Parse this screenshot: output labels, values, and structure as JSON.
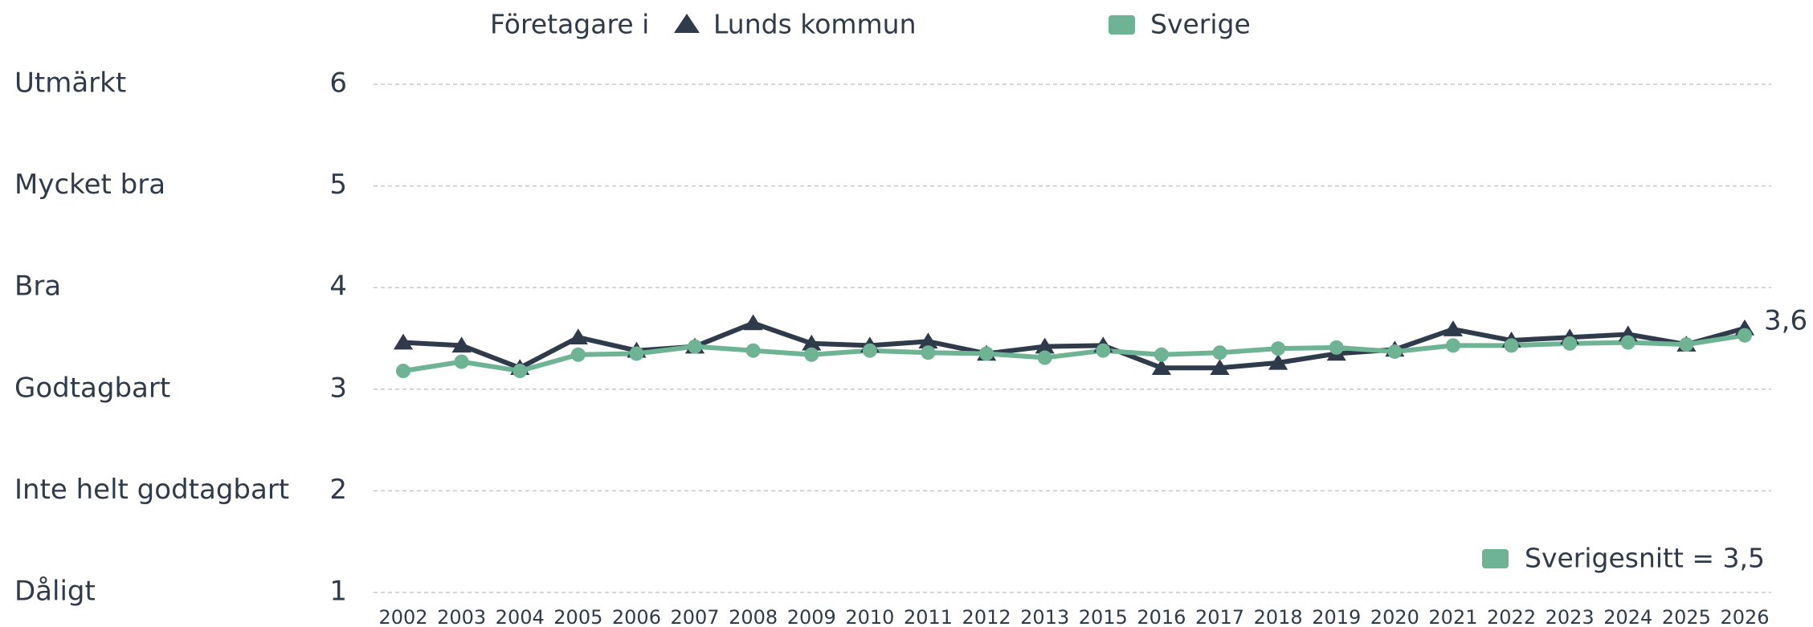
{
  "chart_data": {
    "type": "line",
    "legend_title": "Företagare i",
    "categories": [
      "2002",
      "2003",
      "2004",
      "2005",
      "2006",
      "2007",
      "2008",
      "2009",
      "2010",
      "2011",
      "2012",
      "2013",
      "2015",
      "2016",
      "2017",
      "2018",
      "2019",
      "2020",
      "2021",
      "2022",
      "2023",
      "2024",
      "2025",
      "2026"
    ],
    "series": [
      {
        "name": "Lunds kommun",
        "color": "#2f3a4a",
        "marker": "triangle",
        "values": [
          3.46,
          3.43,
          3.21,
          3.51,
          3.38,
          3.42,
          3.65,
          3.45,
          3.43,
          3.47,
          3.35,
          3.42,
          3.43,
          3.21,
          3.21,
          3.26,
          3.35,
          3.39,
          3.59,
          3.48,
          3.51,
          3.54,
          3.44,
          3.6
        ],
        "value_labels": [
          null,
          null,
          null,
          null,
          null,
          null,
          null,
          null,
          null,
          null,
          null,
          null,
          null,
          null,
          null,
          null,
          null,
          null,
          null,
          null,
          null,
          null,
          null,
          "3,6"
        ]
      },
      {
        "name": "Sverige",
        "color": "#6db394",
        "marker": "circle",
        "values": [
          3.18,
          3.27,
          3.18,
          3.34,
          3.35,
          3.42,
          3.38,
          3.34,
          3.38,
          3.36,
          3.35,
          3.31,
          3.38,
          3.34,
          3.36,
          3.4,
          3.41,
          3.37,
          3.43,
          3.43,
          3.45,
          3.46,
          3.44,
          3.53
        ]
      }
    ],
    "ylim": [
      1,
      6
    ],
    "yticks": [
      1,
      2,
      3,
      4,
      5,
      6
    ],
    "y_categories": [
      "Dåligt",
      "Inte helt godtagbart",
      "Godtagbart",
      "Bra",
      "Mycket bra",
      "Utmärkt"
    ],
    "grid": true,
    "annotation": "Sverigesnitt = 3,5"
  }
}
